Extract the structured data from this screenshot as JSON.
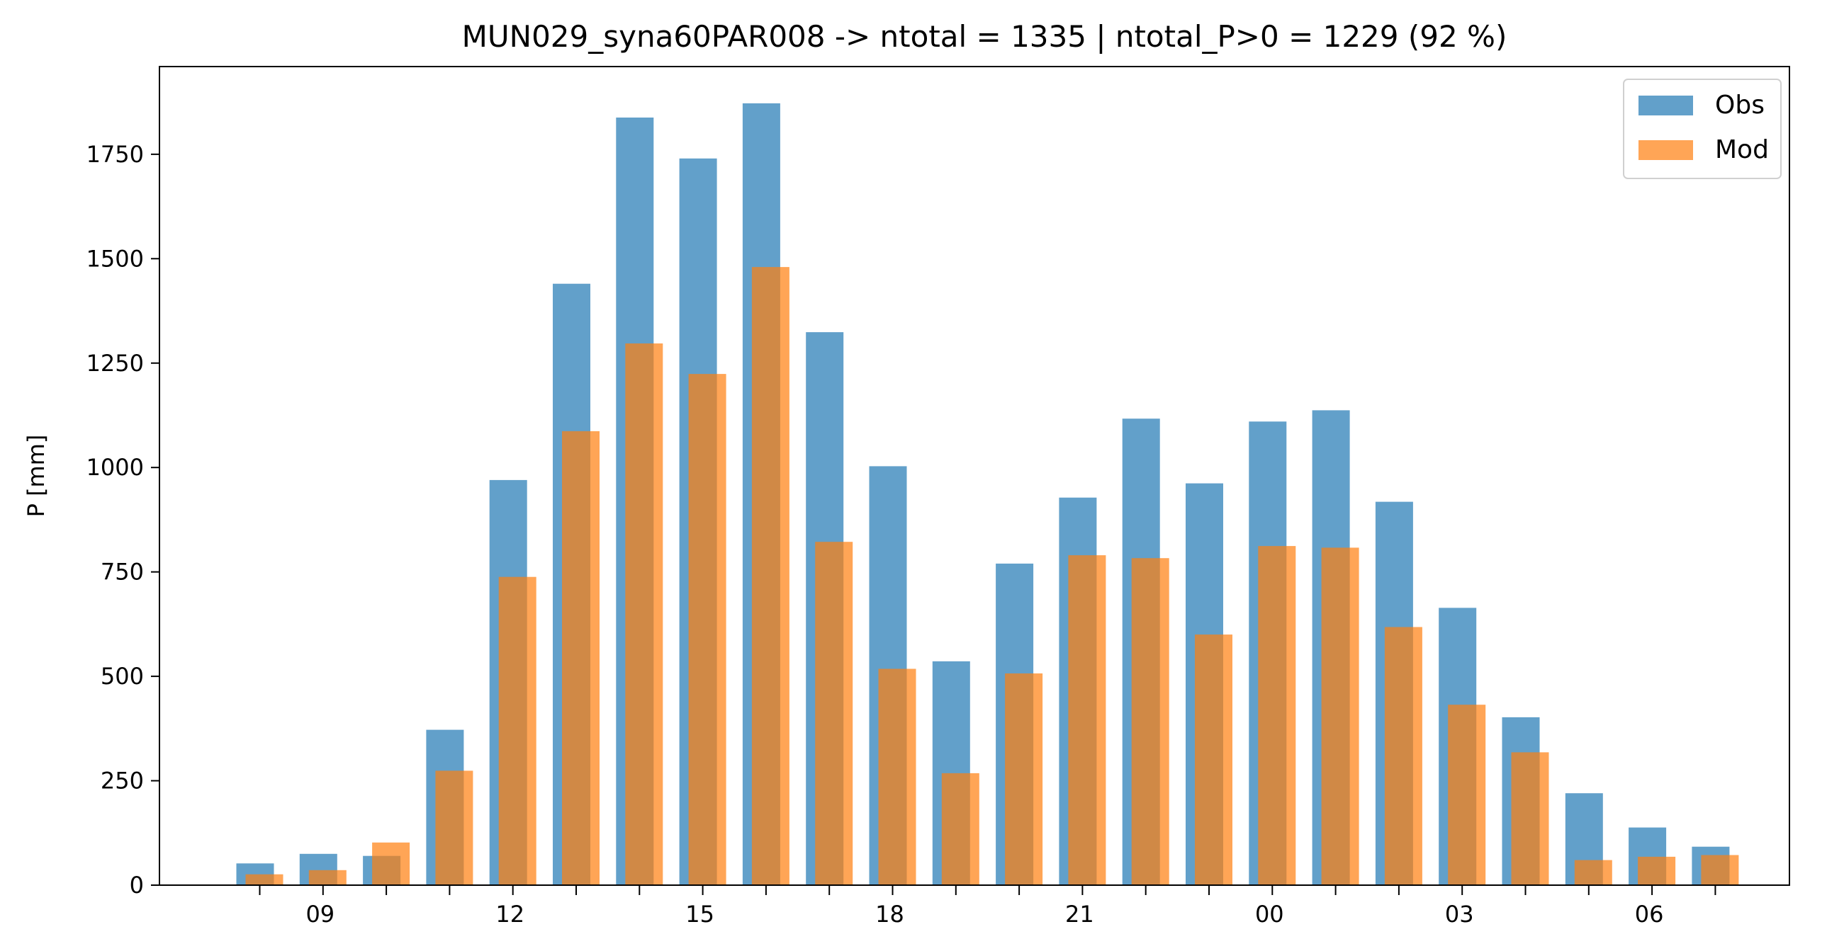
{
  "chart_data": {
    "type": "bar",
    "title": "MUN029_syna60PAR008 -> ntotal = 1335 | ntotal_P>0 = 1229 (92 %)",
    "xlabel": "",
    "ylabel": "P [mm]",
    "ylim": [
      0,
      1960
    ],
    "yticks": [
      0,
      250,
      500,
      750,
      1000,
      1250,
      1500,
      1750
    ],
    "hours": [
      8,
      9,
      10,
      11,
      12,
      13,
      14,
      15,
      16,
      17,
      18,
      19,
      20,
      21,
      22,
      23,
      0,
      1,
      2,
      3,
      4,
      5,
      6,
      7
    ],
    "xtick_labels": [
      "09",
      "12",
      "15",
      "18",
      "21",
      "00",
      "03",
      "06"
    ],
    "legend_position": "top-right",
    "grid": false,
    "series": [
      {
        "name": "Obs",
        "color": "#1f77b4",
        "opacity": 0.7,
        "values": [
          52,
          75,
          70,
          372,
          970,
          1440,
          1838,
          1740,
          1872,
          1324,
          1003,
          536,
          770,
          928,
          1117,
          962,
          1110,
          1137,
          918,
          664,
          402,
          220,
          138,
          92
        ]
      },
      {
        "name": "Mod",
        "color": "#ff7f0e",
        "opacity": 0.7,
        "values": [
          26,
          36,
          102,
          274,
          738,
          1087,
          1297,
          1224,
          1480,
          822,
          518,
          268,
          507,
          790,
          783,
          600,
          812,
          808,
          618,
          432,
          318,
          60,
          68,
          72
        ]
      }
    ]
  }
}
